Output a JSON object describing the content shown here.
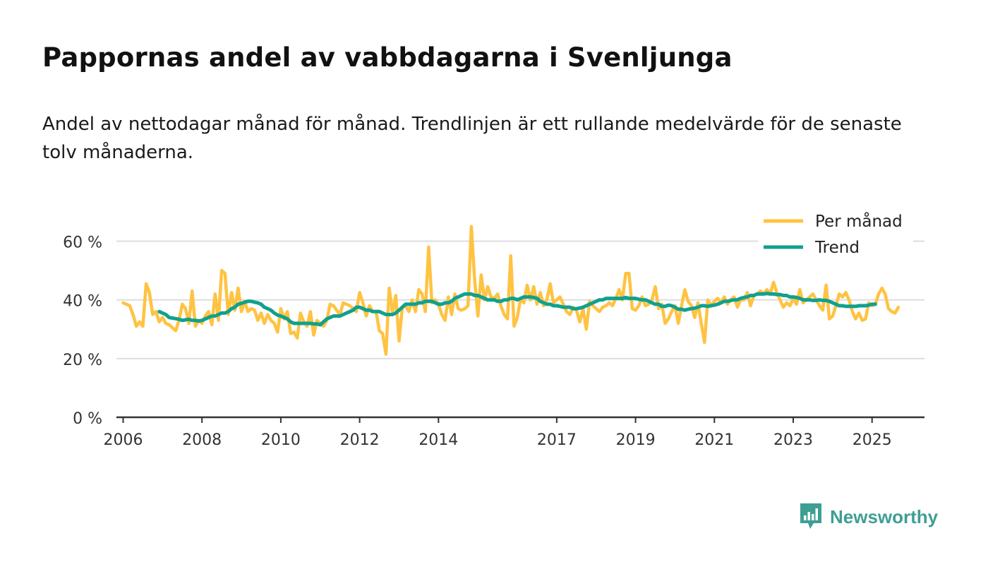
{
  "title": "Pappornas andel av vabbdagarna i Svenljunga",
  "subtitle": "Andel av nettodagar månad för månad. Trendlinjen är ett rullande medelvärde för de senaste tolv månaderna.",
  "brand": {
    "name": "Newsworthy"
  },
  "colors": {
    "monthly": "#ffc342",
    "trend": "#11a08e",
    "grid": "#dddddd",
    "axis": "#333333"
  },
  "chart_data": {
    "type": "line",
    "title": "Pappornas andel av vabbdagarna i Svenljunga",
    "xlabel": "",
    "ylabel": "",
    "ylim": [
      0,
      70
    ],
    "xlim": [
      2005.83,
      2026.33
    ],
    "yticks": [
      0,
      20,
      40,
      60
    ],
    "ytick_labels": [
      "0 %",
      "20 %",
      "40 %",
      "60 %"
    ],
    "xticks": [
      2006,
      2008,
      2010,
      2012,
      2014,
      2017,
      2019,
      2021,
      2023,
      2025
    ],
    "xtick_labels": [
      "2006",
      "2008",
      "2010",
      "2012",
      "2014",
      "2017",
      "2019",
      "2021",
      "2023",
      "2025"
    ],
    "legend_position": "top-right",
    "series": [
      {
        "name": "Per månad",
        "start_year": 2006,
        "start_month": 1,
        "values": [
          39,
          38.5,
          38,
          35,
          31,
          32.5,
          31,
          45.5,
          42.5,
          35,
          36,
          32.5,
          34,
          32,
          31.5,
          30.5,
          29.5,
          33,
          38.5,
          37,
          32,
          43,
          31,
          33,
          32,
          34.5,
          36,
          31.5,
          42,
          33,
          50,
          49,
          35,
          42.5,
          36.5,
          44,
          36,
          39.5,
          36,
          37,
          36.5,
          33,
          35.5,
          32,
          35,
          33,
          32,
          29,
          37,
          33.5,
          36,
          28.5,
          29,
          27,
          35.5,
          32.5,
          31,
          36,
          28,
          33,
          32,
          31,
          33,
          38.5,
          38,
          36.5,
          35,
          39,
          38.5,
          38,
          37,
          36,
          42.5,
          39,
          34.5,
          38,
          36,
          36,
          29.5,
          28.5,
          21.5,
          44,
          35.5,
          41.5,
          26,
          37.5,
          38,
          36,
          40,
          36,
          43.5,
          42,
          36,
          58,
          39,
          40,
          38.5,
          35,
          33,
          41,
          35,
          42,
          37,
          36.5,
          37,
          38,
          65,
          47,
          34.5,
          48.5,
          40,
          44.5,
          41,
          40.5,
          42,
          38,
          35,
          33.5,
          55,
          31,
          34,
          40.5,
          39,
          45,
          40,
          44.5,
          38.5,
          42.5,
          38,
          40,
          45.5,
          39,
          40,
          41,
          38.5,
          36,
          35,
          37.5,
          36.5,
          32.5,
          37,
          30,
          39.5,
          38,
          37,
          36,
          37.5,
          38,
          39,
          38,
          40.5,
          43.5,
          40,
          49,
          49,
          37,
          36.5,
          38,
          41,
          38,
          38.5,
          40,
          44.5,
          37,
          38.5,
          32,
          33.5,
          36,
          38,
          32,
          38,
          43.5,
          39.5,
          38,
          34,
          39,
          32,
          25.5,
          40,
          38,
          39.5,
          40.5,
          39,
          41,
          38.5,
          40,
          41,
          37.5,
          40,
          40,
          42.5,
          38,
          41.5,
          42,
          43,
          42,
          43.5,
          42,
          46,
          42.5,
          40,
          37.5,
          39,
          38,
          40.5,
          38.5,
          43.5,
          39,
          40,
          41,
          42,
          40,
          38,
          36.5,
          45,
          33.5,
          34.5,
          38,
          42,
          41,
          42.5,
          40,
          36,
          33.5,
          35.5,
          33,
          33.5,
          39,
          38,
          38.5,
          42,
          44,
          42,
          37,
          36,
          35.5,
          37.5
        ]
      },
      {
        "name": "Trend",
        "start_year": 2006,
        "start_month": 12,
        "values": [
          36,
          35.5,
          35,
          34,
          33.8,
          33.6,
          33.4,
          33,
          33.2,
          33.4,
          33,
          33,
          32.8,
          33,
          33.5,
          34,
          34.5,
          34.5,
          35,
          35.5,
          35.5,
          36,
          37,
          37.5,
          38.5,
          38.8,
          39.2,
          39.5,
          39.5,
          39.2,
          39,
          38.5,
          37.5,
          37,
          36.5,
          35.5,
          34.8,
          34.5,
          34,
          33.5,
          32.5,
          32,
          32,
          32,
          32,
          32,
          32,
          31.8,
          31.8,
          31.5,
          32.5,
          33.5,
          34,
          34.5,
          34.5,
          34.5,
          35,
          35.5,
          36,
          36.5,
          37.5,
          37.5,
          37,
          36.5,
          36.5,
          36,
          36,
          36,
          35.5,
          35,
          35,
          35,
          35.5,
          36.5,
          37.5,
          38.5,
          38.5,
          38.5,
          38.5,
          39,
          39,
          39.5,
          39.5,
          39.5,
          39,
          38.5,
          38.5,
          39,
          39,
          39.5,
          40.5,
          41,
          41.5,
          42,
          42,
          42,
          41.5,
          41.5,
          41,
          40.5,
          40,
          40,
          40,
          39.5,
          39.5,
          40,
          40,
          40.5,
          40.5,
          40,
          40.5,
          41,
          41,
          41,
          40.8,
          40.5,
          39.5,
          39,
          38.5,
          38.5,
          38,
          38,
          37.8,
          37.5,
          37.5,
          37.5,
          37,
          37,
          37.2,
          37.5,
          38,
          38.5,
          39,
          39.5,
          40,
          40,
          40.5,
          40.5,
          40.5,
          40.5,
          40.5,
          40.5,
          40.8,
          40.5,
          40.5,
          40.5,
          40.2,
          40,
          40,
          39.5,
          39,
          38.5,
          38.5,
          37.8,
          37.8,
          38.2,
          38,
          37.5,
          36.8,
          36.8,
          36.5,
          36.8,
          37,
          37.2,
          37.5,
          38,
          38,
          37.8,
          38,
          38.2,
          38.5,
          39,
          39.5,
          39.5,
          39.8,
          40,
          40,
          40.5,
          40.8,
          41,
          41.5,
          41.5,
          42,
          42,
          42,
          42.2,
          42,
          42,
          41.8,
          41.8,
          41.5,
          41.5,
          41,
          41,
          40.8,
          40.5,
          40,
          40,
          40,
          39.8,
          39.8,
          40,
          39.8,
          39.8,
          39.5,
          39,
          38.5,
          38,
          38,
          37.8,
          37.8,
          37.8,
          37.8,
          38,
          38,
          38,
          38.2,
          38.5,
          38.5
        ]
      }
    ]
  }
}
